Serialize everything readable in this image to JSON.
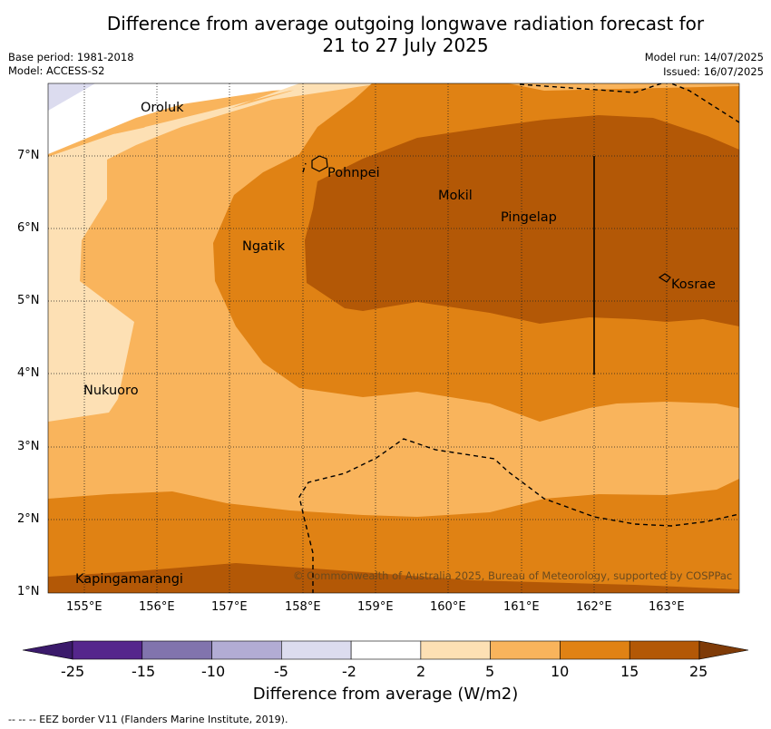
{
  "title_line1": "Difference from average outgoing longwave radiation forecast for",
  "title_line2": "21 to 27 July 2025",
  "base_period": "Base period: 1981-2018",
  "model": "Model: ACCESS-S2",
  "model_run": "Model run: 14/07/2025",
  "issued": "Issued: 16/07/2025",
  "places": [
    {
      "name": "Oroluk"
    },
    {
      "name": "Pohnpei"
    },
    {
      "name": "Mokil"
    },
    {
      "name": "Pingelap"
    },
    {
      "name": "Ngatik"
    },
    {
      "name": "Kosrae"
    },
    {
      "name": "Nukuoro"
    },
    {
      "name": "Kapingamarangi"
    }
  ],
  "lat_ticks": [
    "7°N",
    "6°N",
    "5°N",
    "4°N",
    "3°N",
    "2°N",
    "1°N"
  ],
  "lon_ticks": [
    "155°E",
    "156°E",
    "157°E",
    "158°E",
    "159°E",
    "160°E",
    "161°E",
    "162°E",
    "163°E"
  ],
  "copyright": "© Commonwealth of Australia 2025, Bureau of Meteorology, supported by COSPPac",
  "colorbar": {
    "levels": [
      "-25",
      "-15",
      "-10",
      "-5",
      "-2",
      "2",
      "5",
      "10",
      "15",
      "25"
    ],
    "colors": [
      "#3b1a6b",
      "#55268c",
      "#8174ad",
      "#b2acd4",
      "#dcdcef",
      "#ffffff",
      "#fde0b4",
      "#f9b45c",
      "#e08214",
      "#b35806",
      "#7f3b08"
    ],
    "title": "Difference from average (W/m2)"
  },
  "footnote": "--  --  -- EEZ border V11 (Flanders Marine Institute, 2019)."
}
